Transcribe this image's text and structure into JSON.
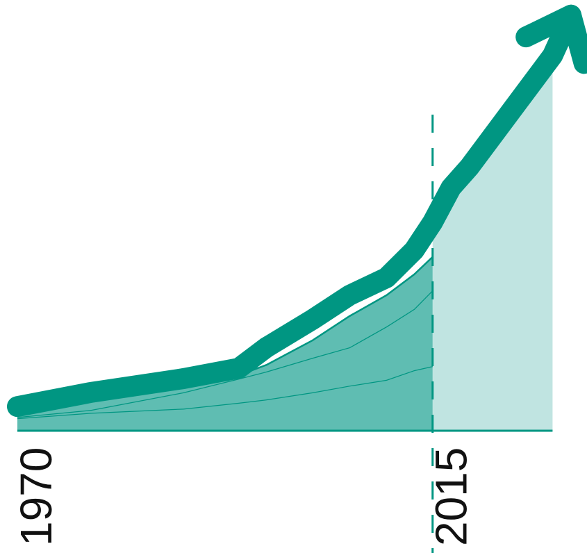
{
  "chart_data": {
    "type": "stacked-area",
    "x": [
      1970,
      1978,
      1988,
      1994,
      1997,
      2002,
      2006,
      2010,
      2013,
      2015,
      2017,
      2019,
      2028,
      2030
    ],
    "xlim": [
      1970,
      2030
    ],
    "ylim": [
      0,
      100
    ],
    "xticks": [
      1970,
      2015
    ],
    "vline": 2015,
    "series": [
      {
        "color": "#5fbdb2",
        "values": [
          3,
          4.3,
          5.3,
          6.7,
          7.5,
          9.2,
          10.8,
          12.2,
          14.5,
          15.5,
          null,
          null,
          null,
          null
        ]
      },
      {
        "color": "#5fbdb2",
        "values": [
          0.3,
          0.7,
          3.9,
          5.8,
          6.7,
          8.3,
          9.2,
          12.8,
          14.7,
          18.2,
          null,
          null,
          null,
          null
        ]
      },
      {
        "color": "#5fbdb2",
        "values": [
          1.4,
          2.5,
          1.6,
          0.8,
          1.6,
          4.2,
          7.5,
          7.5,
          8.3,
          8.0,
          null,
          null,
          null,
          null
        ]
      }
    ],
    "projection": {
      "color": "#c0e4e1",
      "values": [
        null,
        null,
        null,
        null,
        null,
        null,
        null,
        null,
        null,
        48.3,
        56.7,
        61.7,
        91.7,
        null
      ]
    },
    "trend": {
      "color": "#009682",
      "values": [
        5.8,
        9.2,
        12.5,
        15,
        20,
        26.7,
        32.5,
        36.7,
        43.3,
        50,
        58.3,
        63.3,
        90,
        99.7
      ]
    }
  }
}
